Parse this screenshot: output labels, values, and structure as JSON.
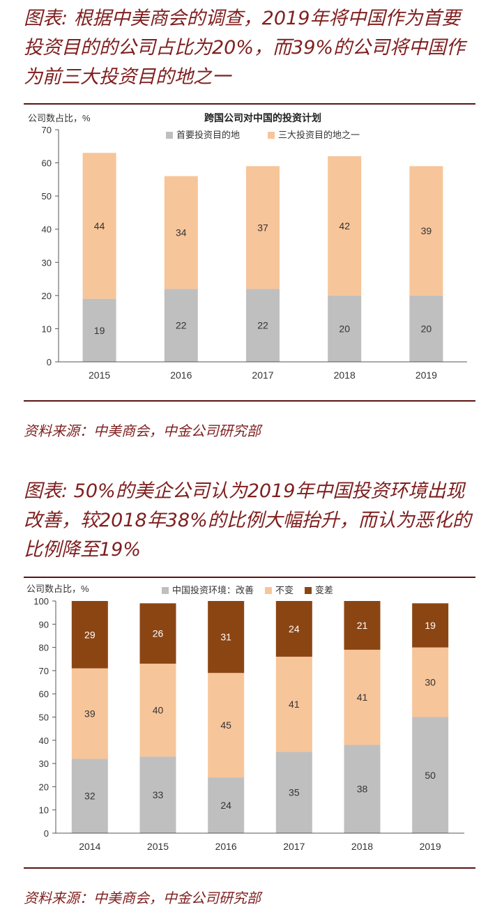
{
  "section1": {
    "headline": "图表: 根据中美商会的调查，2019年将中国作为首要投资目的的公司占比为20%，而39%的公司将中国作为前三大投资目的地之一",
    "source": "资料来源：中美商会，中金公司研究部"
  },
  "section2": {
    "headline": "图表: 50%的美企公司认为2019年中国投资环境出现改善，较2018年38%的比例大幅抬升，而认为恶化的比例降至19%",
    "source": "资料来源：中美商会，中金公司研究部"
  },
  "chart_data": [
    {
      "type": "bar",
      "stacked": true,
      "title": "跨国公司对中国的投资计划",
      "ylabel": "公司数占比，%",
      "xlabel": "",
      "ylim": [
        0,
        70
      ],
      "yticks": [
        0,
        10,
        20,
        30,
        40,
        50,
        60,
        70
      ],
      "categories": [
        "2015",
        "2016",
        "2017",
        "2018",
        "2019"
      ],
      "legend_position": "top",
      "series": [
        {
          "name": "首要投资目的地",
          "values": [
            19,
            22,
            22,
            20,
            20
          ],
          "color": "#bfbfbf"
        },
        {
          "name": "三大投资目的地之一",
          "values": [
            44,
            34,
            37,
            42,
            39
          ],
          "color": "#f7c59a"
        }
      ]
    },
    {
      "type": "bar",
      "stacked": true,
      "title": "",
      "ylabel": "公司数占比，%",
      "xlabel": "",
      "ylim": [
        0,
        100
      ],
      "yticks": [
        0,
        10,
        20,
        30,
        40,
        50,
        60,
        70,
        80,
        90,
        100
      ],
      "categories": [
        "2014",
        "2015",
        "2016",
        "2017",
        "2018",
        "2019"
      ],
      "legend_position": "top",
      "series": [
        {
          "name": "中国投资环境：改善",
          "values": [
            32,
            33,
            24,
            35,
            38,
            50
          ],
          "color": "#bfbfbf"
        },
        {
          "name": "不变",
          "values": [
            39,
            40,
            45,
            41,
            41,
            30
          ],
          "color": "#f7c59a"
        },
        {
          "name": "变差",
          "values": [
            29,
            26,
            31,
            24,
            21,
            19
          ],
          "color": "#8b4513"
        }
      ]
    }
  ]
}
